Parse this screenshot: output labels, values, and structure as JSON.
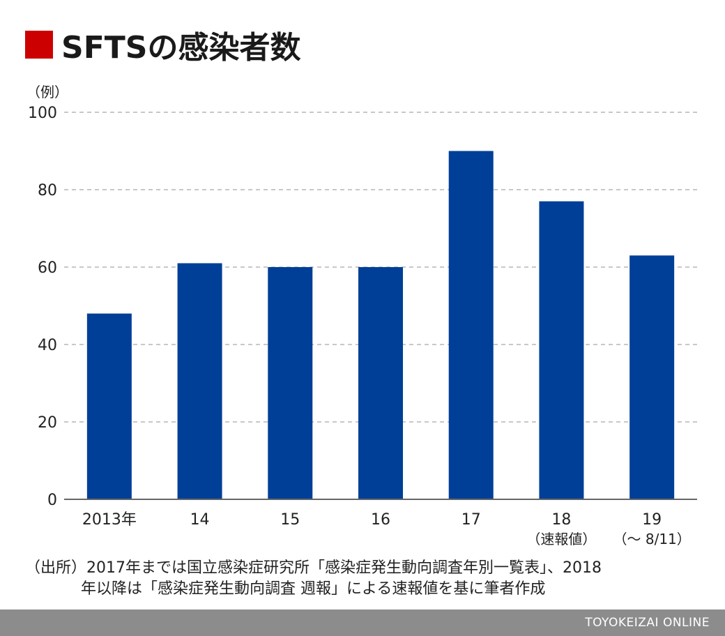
{
  "title": "SFTSの感染者数",
  "unit_label": "（例）",
  "chart_data": {
    "type": "bar",
    "categories": [
      "2013年",
      "14",
      "15",
      "16",
      "17",
      "18",
      "19"
    ],
    "category_sublabels": [
      "",
      "",
      "",
      "",
      "",
      "（速報値）",
      "（～ 8/11）"
    ],
    "values": [
      48,
      61,
      60,
      60,
      90,
      77,
      63
    ],
    "ylim": [
      0,
      100
    ],
    "yticks": [
      0,
      20,
      40,
      60,
      80,
      100
    ],
    "grid": true,
    "grid_style": "dashed",
    "ylabel": "（例）",
    "xlabel": "",
    "bar_color": "#003f98"
  },
  "source": {
    "line1": "（出所）2017年までは国立感染症研究所「感染症発生動向調査年別一覧表」、2018",
    "line2": "年以降は「感染症発生動向調査 週報」による速報値を基に筆者作成"
  },
  "footer": {
    "brand": "TOYOKEIZAI ONLINE"
  },
  "colors": {
    "title_marker": "#cc0000",
    "bar": "#003f98",
    "footer_bg": "#8c8c8c"
  }
}
